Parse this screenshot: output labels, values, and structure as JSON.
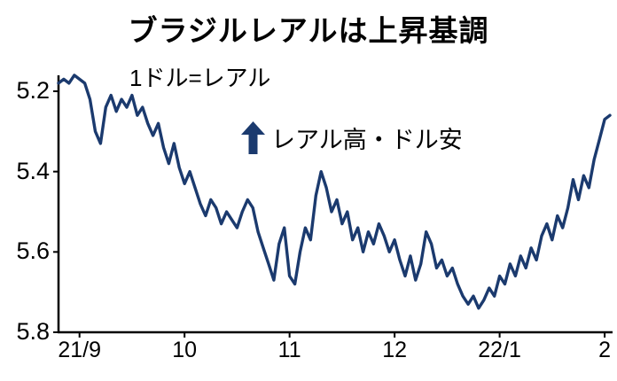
{
  "chart": {
    "title": "ブラジルレアルは上昇基調",
    "subtitle": "1ドル=レアル",
    "annotation": "レアル高・ドル安",
    "line_color": "#1b3a6e",
    "axis_color": "#000000"
  },
  "chart_data": {
    "type": "line",
    "title": "ブラジルレアルは上昇基調",
    "unit_label": "1ドル=レアル",
    "annotation": "レアル高・ドル安",
    "legend_position": "none",
    "grid": false,
    "y_axis": {
      "ticks": [
        5.2,
        5.4,
        5.6,
        5.8
      ],
      "range": [
        5.2,
        5.8
      ],
      "inverted": true
    },
    "x_axis": {
      "tick_labels": [
        "21/9",
        "10",
        "11",
        "12",
        "22/1",
        "2"
      ],
      "tick_positions": [
        4,
        24,
        44,
        64,
        84,
        104
      ],
      "domain": [
        0,
        105
      ]
    },
    "series": [
      {
        "name": "1ドル=レアル",
        "values": [
          5.18,
          5.17,
          5.18,
          5.16,
          5.17,
          5.18,
          5.22,
          5.3,
          5.33,
          5.24,
          5.21,
          5.25,
          5.22,
          5.24,
          5.21,
          5.26,
          5.24,
          5.28,
          5.31,
          5.28,
          5.34,
          5.38,
          5.33,
          5.39,
          5.43,
          5.4,
          5.44,
          5.48,
          5.51,
          5.47,
          5.49,
          5.53,
          5.5,
          5.52,
          5.54,
          5.5,
          5.47,
          5.49,
          5.55,
          5.59,
          5.63,
          5.67,
          5.58,
          5.54,
          5.66,
          5.68,
          5.6,
          5.54,
          5.57,
          5.46,
          5.4,
          5.44,
          5.5,
          5.47,
          5.53,
          5.5,
          5.57,
          5.54,
          5.6,
          5.55,
          5.58,
          5.53,
          5.56,
          5.6,
          5.57,
          5.62,
          5.66,
          5.61,
          5.67,
          5.63,
          5.55,
          5.58,
          5.64,
          5.62,
          5.66,
          5.64,
          5.68,
          5.71,
          5.73,
          5.71,
          5.74,
          5.72,
          5.69,
          5.71,
          5.66,
          5.68,
          5.63,
          5.66,
          5.61,
          5.64,
          5.59,
          5.62,
          5.56,
          5.53,
          5.57,
          5.51,
          5.54,
          5.49,
          5.42,
          5.47,
          5.41,
          5.44,
          5.37,
          5.32,
          5.27,
          5.26
        ]
      }
    ]
  }
}
